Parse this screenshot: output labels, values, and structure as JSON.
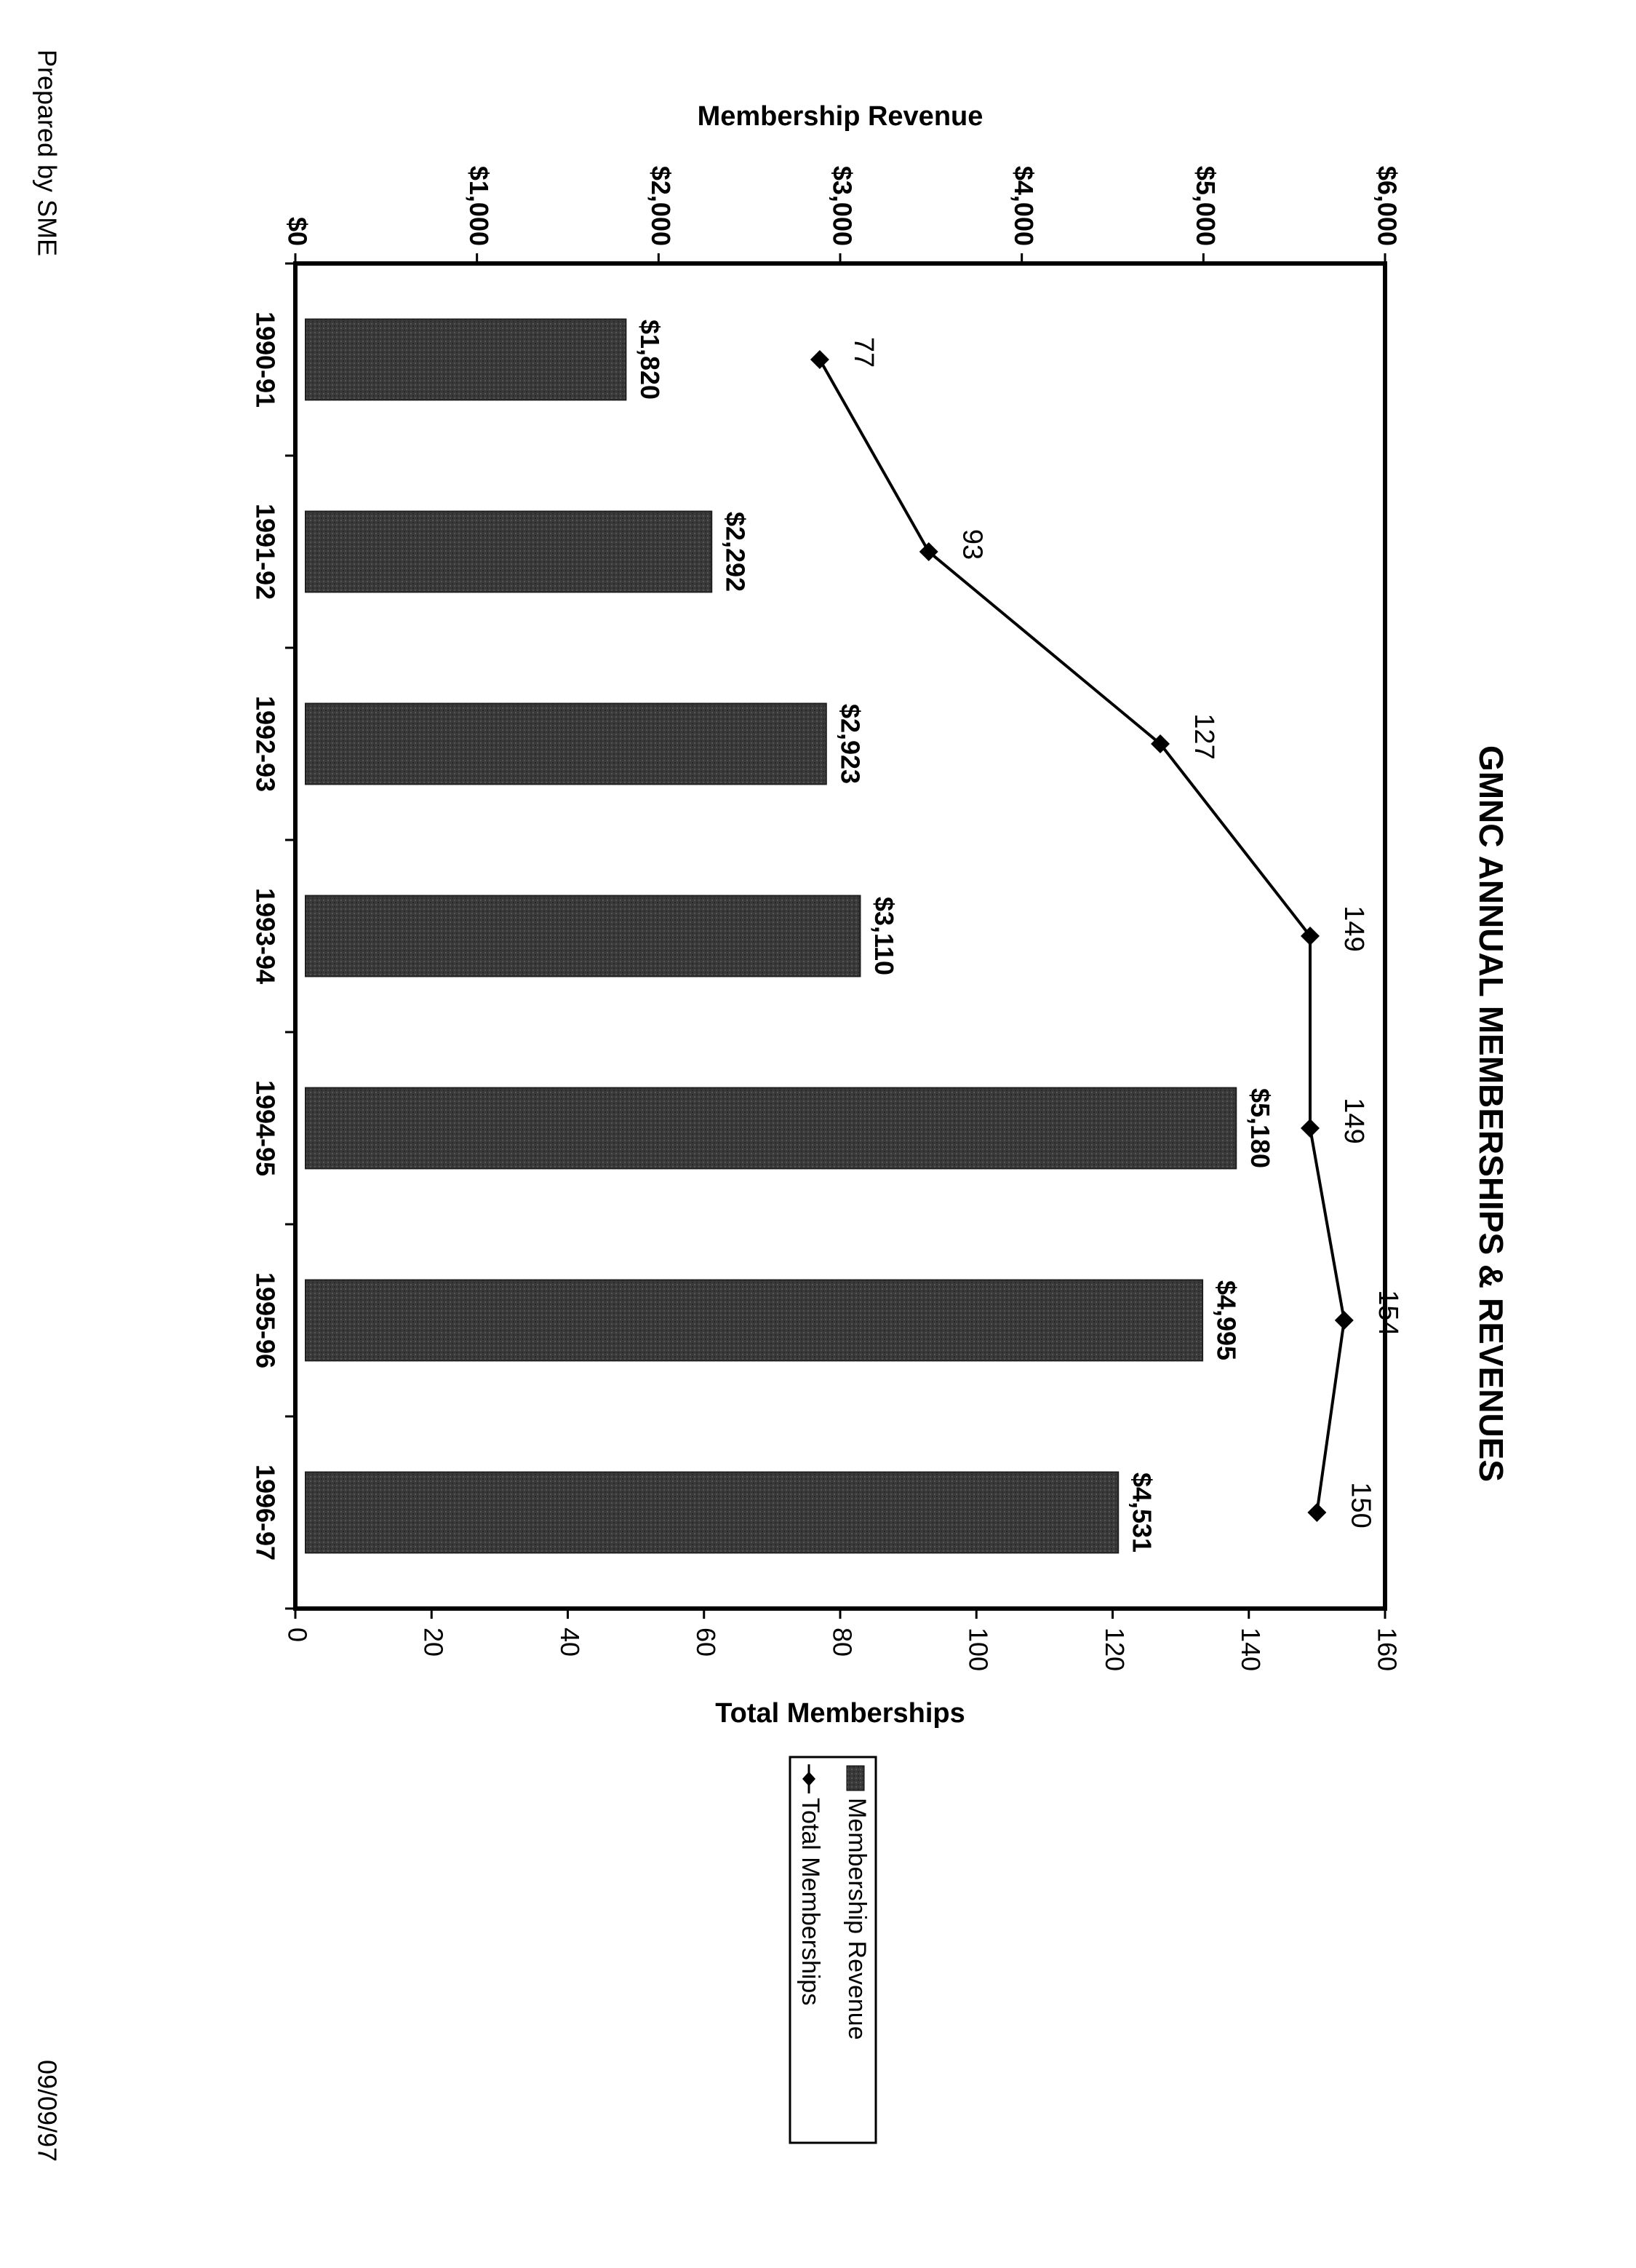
{
  "page": {
    "footer_left": "Prepared by SME",
    "footer_right": "09/09/97"
  },
  "chart_data": {
    "type": "bar",
    "orientation": "rotated 90° clockwise on page",
    "title": "GMNC ANNUAL MEMBERSHIPS & REVENUES",
    "categories": [
      "1990-91",
      "1991-92",
      "1992-93",
      "1993-94",
      "1994-95",
      "1995-96",
      "1996-97"
    ],
    "series": [
      {
        "name": "Membership Revenue",
        "kind": "bar",
        "axis": "Membership Revenue",
        "values": [
          1820,
          2292,
          2923,
          3110,
          5180,
          4995,
          4531
        ],
        "labels": [
          "$1,820",
          "$2,292",
          "$2,923",
          "$3,110",
          "$5,180",
          "$4,995",
          "$4,531"
        ],
        "color": "#3a3a3a"
      },
      {
        "name": "Total Memberships",
        "kind": "line",
        "marker": "diamond",
        "axis": "Total Memberships",
        "values": [
          77,
          93,
          127,
          149,
          149,
          154,
          150
        ],
        "labels": [
          "77",
          "93",
          "127",
          "149",
          "149",
          "154",
          "150"
        ],
        "color": "#000000"
      }
    ],
    "revenue_axis": {
      "label": "Membership Revenue",
      "range": [
        0,
        6000
      ],
      "ticks": [
        0,
        1000,
        2000,
        3000,
        4000,
        5000,
        6000
      ],
      "tick_labels": [
        "$0",
        "$1,000",
        "$2,000",
        "$3,000",
        "$4,000",
        "$5,000",
        "$6,000"
      ]
    },
    "membership_axis": {
      "label": "Total Memberships",
      "range": [
        0,
        160
      ],
      "ticks": [
        0,
        20,
        40,
        60,
        80,
        100,
        120,
        140,
        160
      ],
      "tick_labels": [
        "0",
        "20",
        "40",
        "60",
        "80",
        "100",
        "120",
        "140",
        "160"
      ]
    },
    "legend": {
      "placement": "outside, below plot",
      "entries": [
        "Membership Revenue",
        "Total Memberships"
      ]
    },
    "grid": false
  }
}
